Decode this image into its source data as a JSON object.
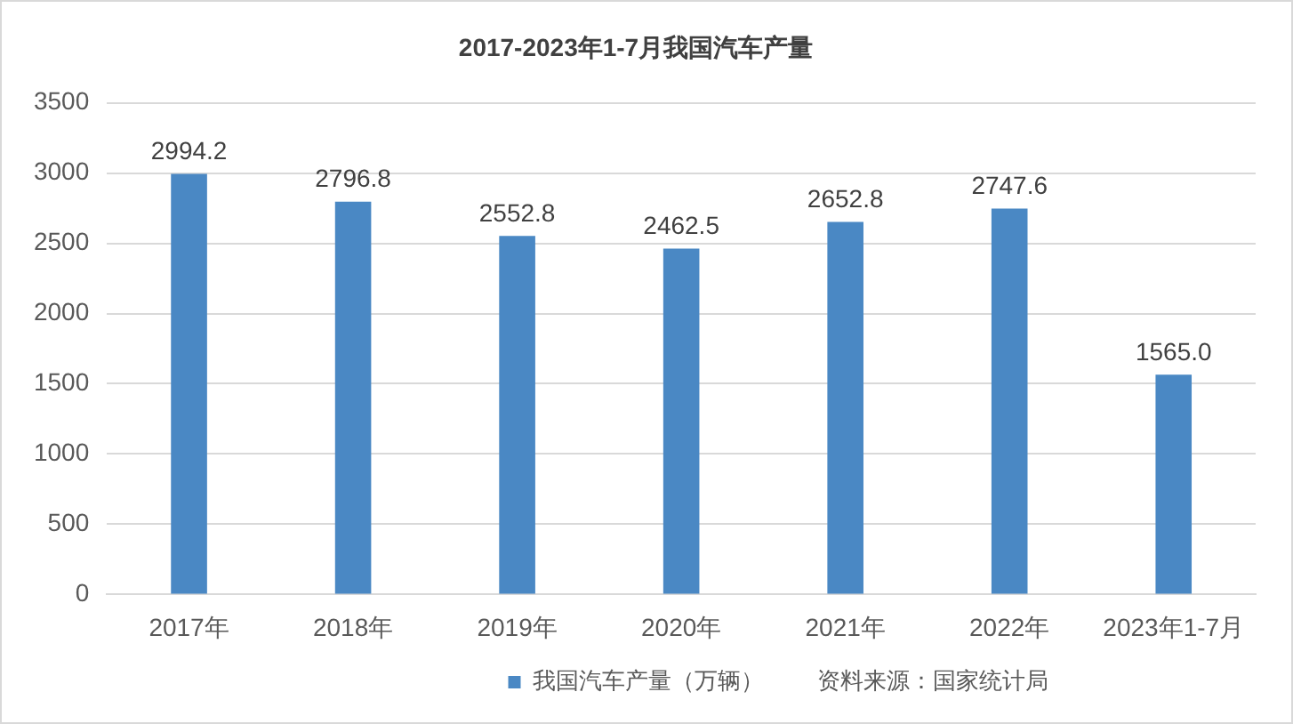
{
  "chart_data": {
    "type": "bar",
    "title": "2017-2023年1-7月我国汽车产量",
    "categories": [
      "2017年",
      "2018年",
      "2019年",
      "2020年",
      "2021年",
      "2022年",
      "2023年1-7月"
    ],
    "series": [
      {
        "name": "我国汽车产量（万辆）",
        "color": "#4a88c4",
        "values": [
          2994.2,
          2796.8,
          2552.8,
          2462.5,
          2652.8,
          2747.6,
          1565.0
        ],
        "value_labels": [
          "2994.2",
          "2796.8",
          "2552.8",
          "2462.5",
          "2652.8",
          "2747.6",
          "1565.0"
        ]
      }
    ],
    "ylim": [
      0,
      3500
    ],
    "yticks": [
      0,
      500,
      1000,
      1500,
      2000,
      2500,
      3000,
      3500
    ],
    "grid": "y",
    "legend": "bottom",
    "annotations": [
      "资料来源：国家统计局"
    ]
  }
}
